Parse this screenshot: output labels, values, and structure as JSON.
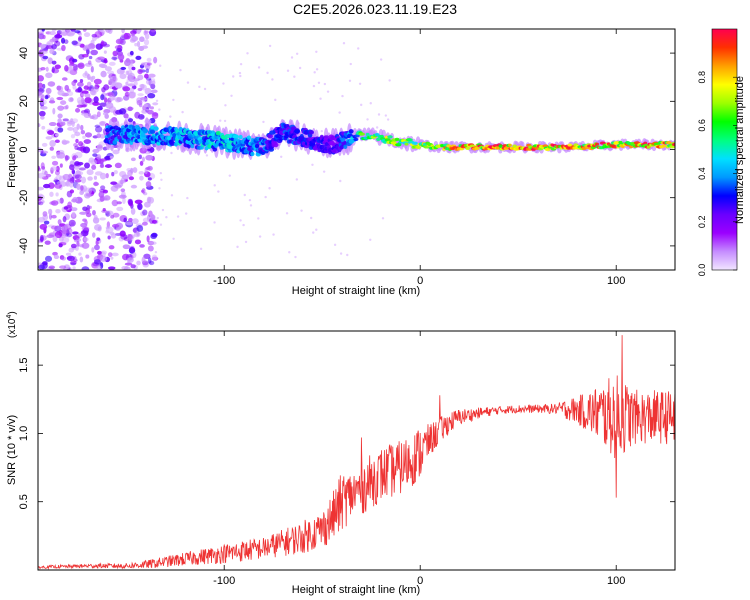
{
  "page": {
    "title": "C2E5.2026.023.11.19.E23"
  },
  "chart_data": [
    {
      "type": "heatmap",
      "title": "C2E5.2026.023.11.19.E23",
      "xlabel": "Height of straight line (km)",
      "ylabel": "Frequency (Hz)",
      "xlim": [
        -195,
        130
      ],
      "ylim": [
        -50,
        50
      ],
      "x_ticks": [
        {
          "value": -100,
          "label": "-100"
        },
        {
          "value": 0,
          "label": "0"
        },
        {
          "value": 100,
          "label": "100"
        }
      ],
      "y_ticks": [
        {
          "value": 40,
          "label": "40"
        },
        {
          "value": 20,
          "label": "20"
        },
        {
          "value": 0,
          "label": "0"
        },
        {
          "value": -20,
          "label": "-20"
        },
        {
          "value": -40,
          "label": "-40"
        }
      ],
      "colorbar": {
        "label": "Normalized spectral amplitude",
        "range": [
          0,
          1
        ],
        "ticks": [
          "0.0",
          "0.2",
          "0.4",
          "0.6",
          "0.8"
        ],
        "colors": [
          "#f2e6ff",
          "#c58cff",
          "#9b00ff",
          "#6a00ff",
          "#0000ff",
          "#0099ff",
          "#00e0ff",
          "#00ff80",
          "#00ff00",
          "#9dff00",
          "#ffff00",
          "#ffa000",
          "#ff3000",
          "#ff0050"
        ]
      },
      "ridge": {
        "x": [
          -160,
          -140,
          -120,
          -100,
          -90,
          -80,
          -75,
          -70,
          -60,
          -50,
          -45,
          -35,
          -30,
          -20,
          -10,
          0,
          10,
          20,
          40,
          60,
          80,
          100,
          115,
          130
        ],
        "center_hz": [
          6,
          6,
          5,
          3,
          2,
          1,
          4,
          7,
          5,
          3,
          2,
          5,
          6,
          5,
          3,
          2,
          1,
          1,
          1,
          1,
          1,
          2,
          2,
          2
        ],
        "amplitude": [
          0.38,
          0.45,
          0.45,
          0.5,
          0.42,
          0.4,
          0.3,
          0.35,
          0.35,
          0.3,
          0.25,
          0.45,
          0.62,
          0.72,
          0.72,
          0.74,
          0.8,
          0.95,
          0.95,
          0.95,
          0.9,
          0.92,
          0.9,
          0.88
        ]
      },
      "noise_region_x": [
        -195,
        -135
      ]
    },
    {
      "type": "line",
      "xlabel": "Height of straight line (km)",
      "ylabel": "SNR (10 * v/v)",
      "y_multiplier": "(x10",
      "y_multiplier_exp": "4",
      "y_multiplier_close": ")",
      "xlim": [
        -195,
        130
      ],
      "ylim": [
        0,
        1.75
      ],
      "color": "#ee3333",
      "x_ticks": [
        {
          "value": -100,
          "label": "-100"
        },
        {
          "value": 0,
          "label": "0"
        },
        {
          "value": 100,
          "label": "100"
        }
      ],
      "y_ticks": [
        {
          "value": 0.5,
          "label": "0.5"
        },
        {
          "value": 1.0,
          "label": "1.0"
        },
        {
          "value": 1.5,
          "label": "1.5"
        }
      ],
      "series": [
        {
          "name": "SNR",
          "x": [
            -195,
            -170,
            -150,
            -140,
            -130,
            -120,
            -110,
            -100,
            -90,
            -80,
            -70,
            -60,
            -50,
            -45,
            -40,
            -35,
            -30,
            -20,
            -10,
            -5,
            0,
            5,
            10,
            15,
            20,
            30,
            40,
            50,
            60,
            70,
            75,
            80,
            90,
            100,
            110,
            120,
            130
          ],
          "mean": [
            0.02,
            0.03,
            0.03,
            0.04,
            0.06,
            0.08,
            0.1,
            0.12,
            0.14,
            0.16,
            0.2,
            0.24,
            0.3,
            0.38,
            0.5,
            0.55,
            0.6,
            0.7,
            0.75,
            0.8,
            0.86,
            0.95,
            1.02,
            1.08,
            1.12,
            1.15,
            1.17,
            1.18,
            1.18,
            1.18,
            1.18,
            1.17,
            1.15,
            1.12,
            1.12,
            1.12,
            1.12
          ],
          "jitter": [
            0.01,
            0.015,
            0.02,
            0.03,
            0.04,
            0.05,
            0.06,
            0.07,
            0.08,
            0.08,
            0.1,
            0.12,
            0.14,
            0.18,
            0.22,
            0.18,
            0.2,
            0.2,
            0.2,
            0.2,
            0.2,
            0.12,
            0.1,
            0.08,
            0.06,
            0.04,
            0.03,
            0.03,
            0.03,
            0.04,
            0.08,
            0.1,
            0.2,
            0.32,
            0.2,
            0.2,
            0.2
          ],
          "max_points": [
            {
              "x": 100,
              "y": 1.75
            },
            {
              "x": 103,
              "y": 1.72
            },
            {
              "x": 100,
              "y": 0.53
            },
            {
              "x": 10,
              "y": 1.28
            },
            {
              "x": -30,
              "y": 0.97
            }
          ]
        }
      ]
    }
  ]
}
